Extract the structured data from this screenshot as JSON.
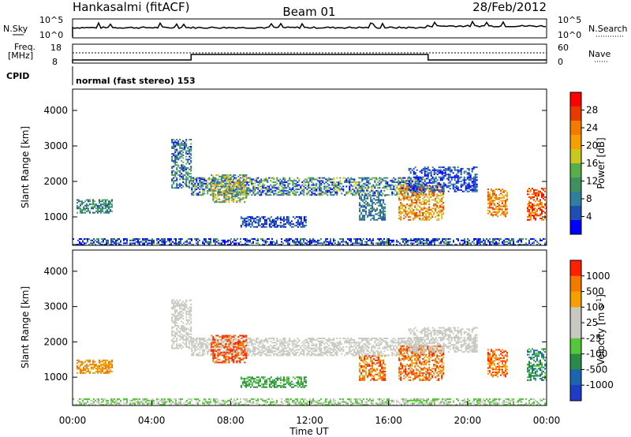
{
  "header": {
    "station": "Hankasalmi (fitACF)",
    "beam": "Beam 01",
    "date": "28/Feb/2012"
  },
  "top_panels": {
    "nsky_label": "N.Sky",
    "nsky_ticks": [
      "10^5",
      "10^0"
    ],
    "nsearch_label": "N.Search",
    "nsearch_ticks": [
      "10^5",
      "10^0"
    ],
    "freq_label_1": "Freq.",
    "freq_label_2": "[MHz]",
    "freq_ticks": [
      "18",
      "8"
    ],
    "nave_label": "Nave",
    "nave_ticks": [
      "60",
      "0"
    ],
    "cpid_label": "CPID",
    "cpid_text": "normal (fast stereo) 153",
    "freq_steps": [
      {
        "from_hour": 0,
        "to_hour": 6,
        "level": "low"
      },
      {
        "from_hour": 6,
        "to_hour": 18,
        "level": "high"
      },
      {
        "from_hour": 18,
        "to_hour": 24,
        "level": "low"
      }
    ]
  },
  "chart_data": [
    {
      "type": "heatmap",
      "name": "power-panel",
      "ylabel": "Slant Range [km]",
      "yticks": [
        "4000",
        "3000",
        "2000",
        "1000"
      ],
      "ylim": [
        200,
        4600
      ],
      "xlim": [
        0,
        24
      ],
      "colorbar": {
        "label": "Power [dB]",
        "ticks": [
          "28",
          "24",
          "20",
          "16",
          "12",
          "8",
          "4"
        ],
        "colors": [
          "#0000ff",
          "#1f4fb4",
          "#2f7f9f",
          "#3f8f5f",
          "#55b04a",
          "#c8c820",
          "#f5a000",
          "#f57a00",
          "#e83a00",
          "#ff0000"
        ]
      }
    },
    {
      "type": "heatmap",
      "name": "velocity-panel",
      "ylabel": "Slant Range [km]",
      "yticks": [
        "4000",
        "3000",
        "2000",
        "1000"
      ],
      "ylim": [
        200,
        4600
      ],
      "xlim": [
        0,
        24
      ],
      "xticks": [
        "00:00",
        "04:00",
        "08:00",
        "12:00",
        "16:00",
        "20:00",
        "00:00"
      ],
      "xlabel": "Time UT",
      "colorbar": {
        "label": "Velocity [m s",
        "label_sup": "-1",
        "label_end": "]",
        "ticks": [
          "1000",
          "500",
          "100",
          "25",
          "-25",
          "-100",
          "-500",
          "-1000"
        ],
        "colors": [
          "#1e3cc8",
          "#1a64b0",
          "#2a8a4a",
          "#55c83a",
          "#c8c8c0",
          "#c8c8c0",
          "#f5a000",
          "#f57800",
          "#ff2000"
        ]
      }
    }
  ]
}
